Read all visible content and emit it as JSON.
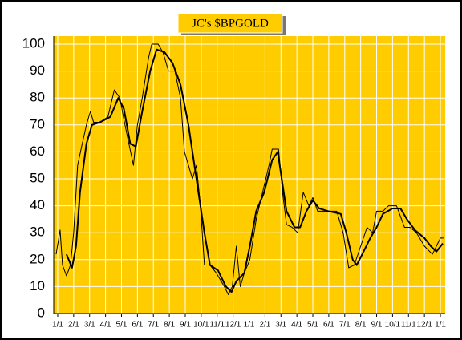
{
  "chart_data": {
    "type": "line",
    "title": "JC's $BPGOLD",
    "xlim": [
      -0.25,
      24.3
    ],
    "xticks": [
      {
        "value": 0,
        "label": "1/1"
      },
      {
        "value": 1,
        "label": "2/1"
      },
      {
        "value": 2,
        "label": "3/1"
      },
      {
        "value": 3,
        "label": "4/1"
      },
      {
        "value": 4,
        "label": "5/1"
      },
      {
        "value": 5,
        "label": "6/1"
      },
      {
        "value": 6,
        "label": "7/1"
      },
      {
        "value": 7,
        "label": "8/1"
      },
      {
        "value": 8,
        "label": "9/1"
      },
      {
        "value": 9,
        "label": "10/1"
      },
      {
        "value": 10,
        "label": "11/1"
      },
      {
        "value": 11,
        "label": "12/1"
      },
      {
        "value": 12,
        "label": "1/1"
      },
      {
        "value": 13,
        "label": "2/1"
      },
      {
        "value": 14,
        "label": "3/1"
      },
      {
        "value": 15,
        "label": "4/1"
      },
      {
        "value": 16,
        "label": "5/1"
      },
      {
        "value": 17,
        "label": "6/1"
      },
      {
        "value": 18,
        "label": "7/1"
      },
      {
        "value": 19,
        "label": "8/1"
      },
      {
        "value": 20,
        "label": "9/1"
      },
      {
        "value": 21,
        "label": "10/1"
      },
      {
        "value": 22,
        "label": "11/1"
      },
      {
        "value": 23,
        "label": "12/1"
      },
      {
        "value": 24,
        "label": "1/1"
      }
    ],
    "ylim": [
      0,
      100
    ],
    "yticks": [
      0,
      10,
      20,
      30,
      40,
      50,
      60,
      70,
      80,
      90,
      100
    ],
    "grid": true,
    "series": [
      {
        "color": "#000000",
        "width": 1,
        "x": [
          -0.1,
          0.15,
          0.3,
          0.55,
          0.8,
          1.0,
          1.25,
          1.5,
          1.8,
          2.05,
          2.25,
          2.65,
          3.15,
          3.55,
          3.9,
          4.15,
          4.5,
          4.75,
          5.0,
          5.3,
          5.7,
          5.9,
          6.3,
          6.6,
          6.95,
          7.35,
          7.7,
          7.95,
          8.2,
          8.45,
          8.7,
          8.95,
          9.2,
          9.55,
          9.95,
          10.45,
          10.7,
          10.95,
          11.2,
          11.45,
          11.7,
          12.05,
          12.45,
          12.85,
          13.25,
          13.45,
          13.85,
          14.1,
          14.35,
          14.7,
          15.05,
          15.4,
          15.75,
          16.0,
          16.3,
          16.95,
          17.5,
          17.9,
          18.25,
          18.6,
          19.0,
          19.4,
          19.75,
          20.0,
          20.4,
          20.75,
          21.25,
          21.75,
          22.1,
          22.5,
          23.0,
          23.5,
          23.75,
          24.0,
          24.25
        ],
        "values": [
          22,
          31,
          18,
          14,
          18,
          30,
          55,
          62,
          70,
          75,
          71,
          71,
          73,
          83,
          80,
          72,
          62,
          55,
          70,
          80,
          95,
          100,
          100,
          97,
          90,
          90,
          80,
          60,
          55,
          50,
          55,
          40,
          18,
          18,
          15,
          10,
          7,
          10,
          25,
          10,
          15,
          20,
          35,
          45,
          55,
          61,
          61,
          45,
          33,
          32,
          30,
          45,
          40,
          43,
          38,
          38,
          38,
          30,
          17,
          18,
          25,
          32,
          30,
          38,
          38,
          40,
          40,
          32,
          32,
          30,
          25,
          22,
          25,
          28,
          28
        ]
      },
      {
        "color": "#000000",
        "width": 2,
        "x": [
          0.55,
          0.9,
          1.15,
          1.4,
          1.8,
          2.15,
          2.65,
          3.3,
          3.8,
          4.15,
          4.55,
          4.9,
          5.3,
          5.8,
          6.2,
          6.7,
          7.2,
          7.7,
          8.2,
          8.7,
          9.2,
          9.55,
          10.05,
          10.55,
          10.9,
          11.2,
          11.7,
          12.05,
          12.45,
          12.95,
          13.45,
          13.8,
          14.05,
          14.35,
          14.85,
          15.2,
          15.6,
          16.0,
          16.4,
          16.95,
          17.75,
          18.1,
          18.5,
          18.75,
          19.1,
          19.6,
          20.0,
          20.4,
          21.0,
          21.5,
          21.9,
          22.4,
          23.0,
          23.4,
          23.75,
          24.15
        ],
        "values": [
          22,
          17,
          25,
          45,
          63,
          70,
          71,
          73,
          80,
          76,
          63,
          62,
          75,
          90,
          98,
          97,
          93,
          85,
          70,
          50,
          30,
          18,
          16,
          10,
          8,
          12,
          15,
          25,
          38,
          45,
          57,
          60,
          50,
          38,
          32,
          32,
          38,
          42,
          39,
          38,
          37,
          30,
          20,
          18,
          22,
          28,
          32,
          37,
          39,
          39,
          35,
          31,
          28,
          25,
          23,
          26
        ]
      }
    ]
  }
}
